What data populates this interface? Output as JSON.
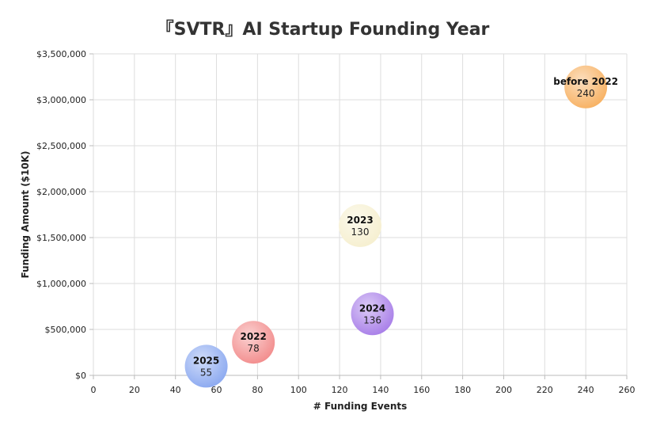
{
  "chart_data": {
    "type": "scatter",
    "title": "『SVTR』AI Startup Founding Year",
    "xlabel": "# Funding Events",
    "ylabel": "Funding Amount ($10K)",
    "xlim": [
      0,
      260
    ],
    "ylim": [
      0,
      3500000
    ],
    "x_ticks": [
      "0",
      "20",
      "40",
      "60",
      "80",
      "100",
      "120",
      "140",
      "160",
      "180",
      "200",
      "220",
      "240",
      "260"
    ],
    "y_ticks": [
      "$0",
      "$500,000",
      "$1,000,000",
      "$1,500,000",
      "$2,000,000",
      "$2,500,000",
      "$3,000,000",
      "$3,500,000"
    ],
    "grid": true,
    "series": [
      {
        "name": "2025",
        "label": "55",
        "x": 55,
        "y": 100000,
        "color": "#8aa8f0"
      },
      {
        "name": "2022",
        "label": "78",
        "x": 78,
        "y": 360000,
        "color": "#f28b8b"
      },
      {
        "name": "2024",
        "label": "136",
        "x": 136,
        "y": 670000,
        "color": "#a77de8"
      },
      {
        "name": "2023",
        "label": "130",
        "x": 130,
        "y": 1630000,
        "color": "#f6efcf"
      },
      {
        "name": "before 2022",
        "label": "240",
        "x": 240,
        "y": 3140000,
        "color": "#f7b060"
      }
    ]
  }
}
